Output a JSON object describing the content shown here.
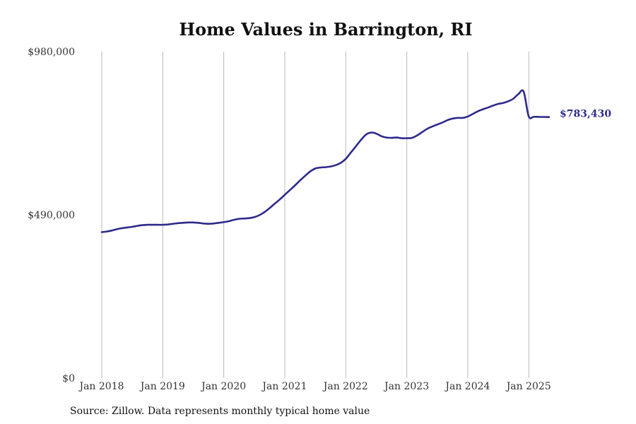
{
  "chart_data": {
    "type": "line",
    "title": "Home Values in Barrington, RI",
    "xlabel": "",
    "ylabel": "",
    "ylim": [
      0,
      980000
    ],
    "y_ticks": [
      "$0",
      "$490,000",
      "$980,000"
    ],
    "x_ticks": [
      "Jan 2018",
      "Jan 2019",
      "Jan 2020",
      "Jan 2021",
      "Jan 2022",
      "Jan 2023",
      "Jan 2024",
      "Jan 2025"
    ],
    "xlim": [
      "2018-01",
      "2025-05"
    ],
    "grid": "vertical",
    "legend": "none",
    "line_color": "#2e2a8a",
    "end_label": "$783,430",
    "series": [
      {
        "x": [
          "2018-01",
          "2018-02",
          "2018-03",
          "2018-04",
          "2018-05",
          "2018-06",
          "2018-07",
          "2018-08",
          "2018-09",
          "2018-10",
          "2018-11",
          "2018-12",
          "2019-01",
          "2019-02",
          "2019-03",
          "2019-04",
          "2019-05",
          "2019-06",
          "2019-07",
          "2019-08",
          "2019-09",
          "2019-10",
          "2019-11",
          "2019-12",
          "2020-01",
          "2020-02",
          "2020-03",
          "2020-04",
          "2020-05",
          "2020-06",
          "2020-07",
          "2020-08",
          "2020-09",
          "2020-10",
          "2020-11",
          "2020-12",
          "2021-01",
          "2021-02",
          "2021-03",
          "2021-04",
          "2021-05",
          "2021-06",
          "2021-07",
          "2021-08",
          "2021-09",
          "2021-10",
          "2021-11",
          "2021-12",
          "2022-01",
          "2022-02",
          "2022-03",
          "2022-04",
          "2022-05",
          "2022-06",
          "2022-07",
          "2022-08",
          "2022-09",
          "2022-10",
          "2022-11",
          "2022-12",
          "2023-01",
          "2023-02",
          "2023-03",
          "2023-04",
          "2023-05",
          "2023-06",
          "2023-07",
          "2023-08",
          "2023-09",
          "2023-10",
          "2023-11",
          "2023-12",
          "2024-01",
          "2024-02",
          "2024-03",
          "2024-04",
          "2024-05",
          "2024-06",
          "2024-07",
          "2024-08",
          "2024-09",
          "2024-10",
          "2024-11",
          "2024-12",
          "2025-01",
          "2025-02",
          "2025-03",
          "2025-04",
          "2025-05"
        ],
        "values": [
          438000,
          440000,
          443000,
          447000,
          450000,
          452000,
          454000,
          457000,
          459000,
          460000,
          460000,
          460000,
          460000,
          461000,
          463000,
          465000,
          466000,
          467000,
          467000,
          466000,
          464000,
          463000,
          464000,
          466000,
          468000,
          471000,
          475000,
          478000,
          479000,
          480000,
          483000,
          489000,
          498000,
          510000,
          523000,
          536000,
          550000,
          564000,
          578000,
          593000,
          607000,
          620000,
          629000,
          632000,
          633000,
          635000,
          639000,
          646000,
          658000,
          677000,
          696000,
          715000,
          731000,
          737000,
          734000,
          726000,
          722000,
          721000,
          722000,
          720000,
          720000,
          721000,
          728000,
          738000,
          748000,
          755000,
          761000,
          767000,
          774000,
          779000,
          781000,
          781000,
          785000,
          793000,
          801000,
          807000,
          812000,
          818000,
          823000,
          826000,
          831000,
          839000,
          853000,
          860000,
          785500,
          784500,
          784000,
          783700,
          783430
        ]
      }
    ]
  },
  "source": "Source: Zillow. Data represents monthly typical home value"
}
